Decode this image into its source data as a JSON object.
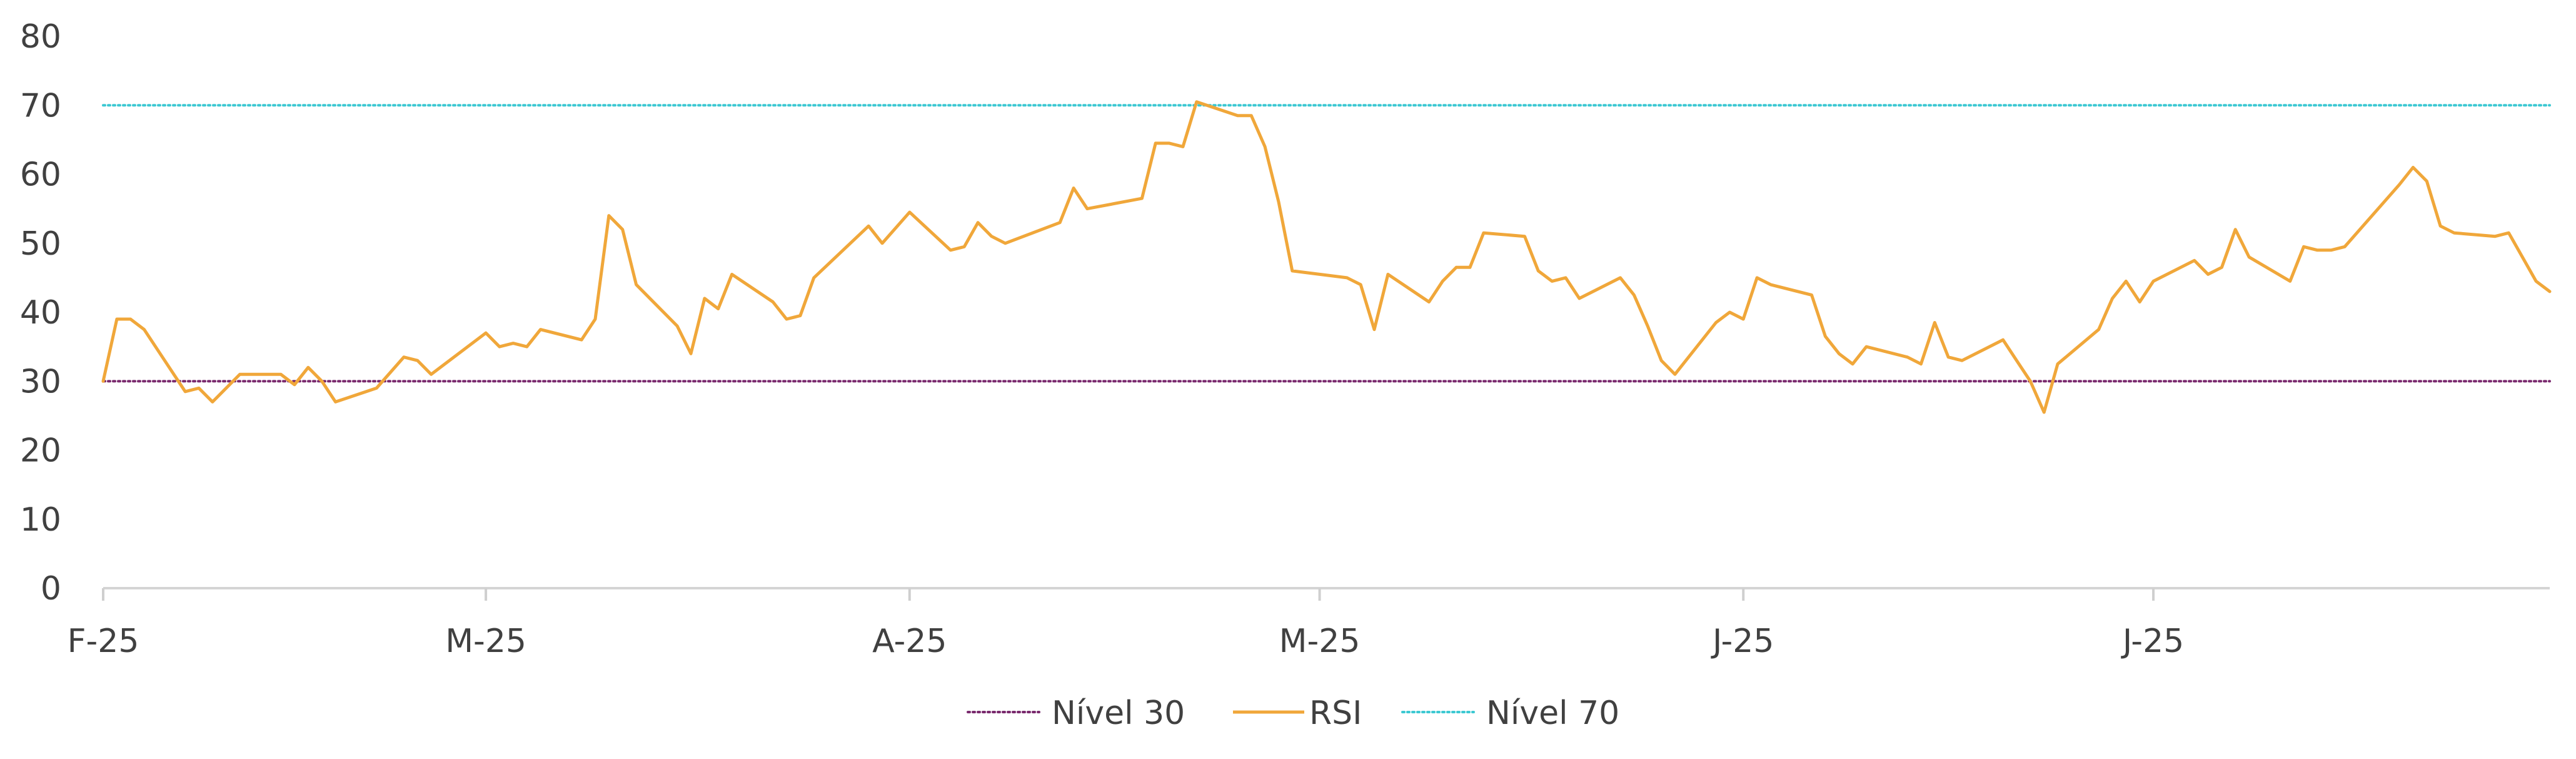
{
  "chart_data": {
    "type": "line",
    "title": "",
    "xlabel": "",
    "ylabel": "",
    "ylim": [
      0,
      80
    ],
    "yticks": [
      0,
      10,
      20,
      30,
      40,
      50,
      60,
      70,
      80
    ],
    "x_tick_labels": [
      {
        "label": "F-25",
        "index": 0
      },
      {
        "label": "M-25",
        "index": 28
      },
      {
        "label": "A-25",
        "index": 59
      },
      {
        "label": "M-25",
        "index": 89
      },
      {
        "label": "J-25",
        "index": 120
      },
      {
        "label": "J-25",
        "index": 150
      }
    ],
    "x_count": 180,
    "grid": false,
    "legend_position": "bottom",
    "series": [
      {
        "name": "Nível 30",
        "style": "dotted",
        "color": "#7a2a6e",
        "values": [
          30,
          30
        ]
      },
      {
        "name": "RSI",
        "style": "solid",
        "color": "#f0a73a",
        "points": [
          [
            0,
            30
          ],
          [
            1,
            39
          ],
          [
            2,
            39
          ],
          [
            3,
            37.5
          ],
          [
            6,
            28.5
          ],
          [
            7,
            29
          ],
          [
            8,
            27
          ],
          [
            10,
            31
          ],
          [
            13,
            31
          ],
          [
            14,
            29.5
          ],
          [
            15,
            32
          ],
          [
            16,
            30
          ],
          [
            17,
            27
          ],
          [
            20,
            29
          ],
          [
            22,
            33.5
          ],
          [
            23,
            33
          ],
          [
            24,
            31
          ],
          [
            28,
            37
          ],
          [
            29,
            35
          ],
          [
            30,
            35.5
          ],
          [
            31,
            35
          ],
          [
            32,
            37.5
          ],
          [
            35,
            36
          ],
          [
            36,
            39
          ],
          [
            37,
            54
          ],
          [
            38,
            52
          ],
          [
            39,
            44
          ],
          [
            42,
            38
          ],
          [
            43,
            34
          ],
          [
            44,
            42
          ],
          [
            45,
            40.5
          ],
          [
            46,
            45.5
          ],
          [
            49,
            41.5
          ],
          [
            50,
            39
          ],
          [
            51,
            39.5
          ],
          [
            52,
            45
          ],
          [
            56,
            52.5
          ],
          [
            57,
            50
          ],
          [
            59,
            54.5
          ],
          [
            62,
            49
          ],
          [
            63,
            49.5
          ],
          [
            64,
            53
          ],
          [
            65,
            51
          ],
          [
            66,
            50
          ],
          [
            70,
            53
          ],
          [
            71,
            58
          ],
          [
            72,
            55
          ],
          [
            76,
            56.5
          ],
          [
            77,
            64.5
          ],
          [
            78,
            64.5
          ],
          [
            79,
            64
          ],
          [
            80,
            70.5
          ],
          [
            83,
            68.5
          ],
          [
            84,
            68.5
          ],
          [
            85,
            64
          ],
          [
            86,
            56
          ],
          [
            87,
            46
          ],
          [
            91,
            45
          ],
          [
            92,
            44
          ],
          [
            93,
            37.5
          ],
          [
            94,
            45.5
          ],
          [
            97,
            41.5
          ],
          [
            98,
            44.5
          ],
          [
            99,
            46.5
          ],
          [
            100,
            46.5
          ],
          [
            101,
            51.5
          ],
          [
            104,
            51
          ],
          [
            105,
            46
          ],
          [
            106,
            44.5
          ],
          [
            107,
            45
          ],
          [
            108,
            42
          ],
          [
            111,
            45
          ],
          [
            112,
            42.5
          ],
          [
            113,
            38
          ],
          [
            114,
            33
          ],
          [
            115,
            31
          ],
          [
            118,
            38.5
          ],
          [
            119,
            40
          ],
          [
            120,
            39
          ],
          [
            121,
            45
          ],
          [
            122,
            44
          ],
          [
            125,
            42.5
          ],
          [
            126,
            36.5
          ],
          [
            127,
            34
          ],
          [
            128,
            32.5
          ],
          [
            129,
            35
          ],
          [
            132,
            33.5
          ],
          [
            133,
            32.5
          ],
          [
            134,
            38.5
          ],
          [
            135,
            33.5
          ],
          [
            136,
            33
          ],
          [
            139,
            36
          ],
          [
            140,
            33
          ],
          [
            141,
            30
          ],
          [
            142,
            25.5
          ],
          [
            143,
            32.5
          ],
          [
            146,
            37.5
          ],
          [
            147,
            42
          ],
          [
            148,
            44.5
          ],
          [
            149,
            41.5
          ],
          [
            150,
            44.5
          ],
          [
            153,
            47.5
          ],
          [
            154,
            45.5
          ],
          [
            155,
            46.5
          ],
          [
            156,
            52
          ],
          [
            157,
            48
          ],
          [
            160,
            44.5
          ],
          [
            161,
            49.5
          ],
          [
            162,
            49
          ],
          [
            163,
            49
          ],
          [
            164,
            49.5
          ],
          [
            168,
            58.5
          ],
          [
            169,
            61
          ],
          [
            170,
            59
          ],
          [
            171,
            52.5
          ],
          [
            172,
            51.5
          ],
          [
            175,
            51
          ],
          [
            176,
            51.5
          ],
          [
            178,
            44.5
          ],
          [
            179,
            43
          ]
        ]
      },
      {
        "name": "Nível 70",
        "style": "dotted",
        "color": "#3cc8d2",
        "values": [
          70,
          70
        ]
      }
    ]
  }
}
